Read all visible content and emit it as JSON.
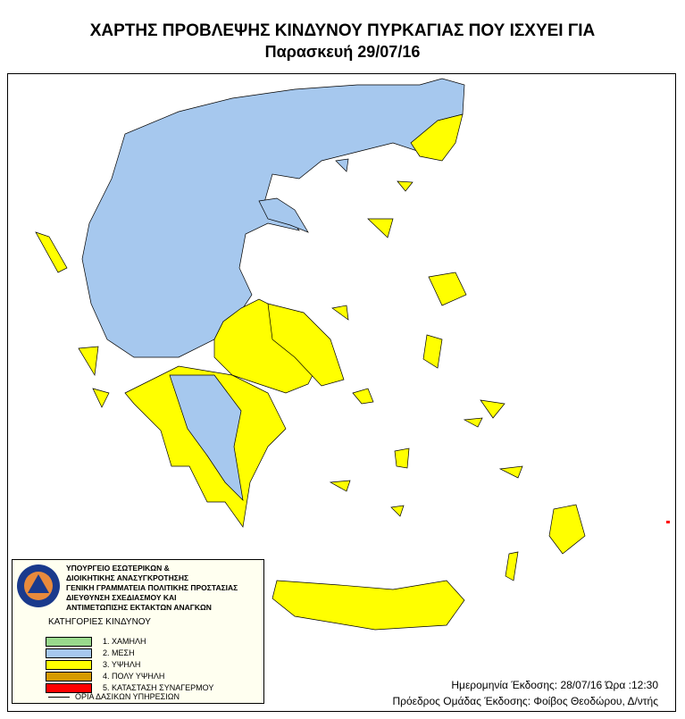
{
  "header": {
    "title": "ΧΑΡΤΗΣ ΠΡΟΒΛΕΨΗΣ ΚΙΝΔΥΝΟΥ ΠΥΡΚΑΓΙΑΣ ΠΟΥ ΙΣΧΥΕΙ ΓΙΑ",
    "subtitle": "Παρασκευή 29/07/16"
  },
  "legend": {
    "organization": [
      "ΥΠΟΥΡΓΕΙΟ ΕΣΩΤΕΡΙΚΩΝ &",
      "ΔΙΟΙΚΗΤΙΚΗΣ ΑΝΑΣΥΓΚΡΟΤΗΣΗΣ",
      "ΓΕΝΙΚΗ ΓΡΑΜΜΑΤΕΙΑ ΠΟΛΙΤΙΚΗΣ ΠΡΟΣΤΑΣΙΑΣ",
      "ΔΙΕΥΘΥΝΣΗ ΣΧΕΔΙΑΣΜΟΥ ΚΑΙ",
      "ΑΝΤΙΜΕΤΩΠΙΣΗΣ ΕΚΤΑΚΤΩΝ ΑΝΑΓΚΩΝ"
    ],
    "logo_text": "ΠΟΛΙΤΙΚΗ ΠΡΟΣΤΑΣΙΑ ΕΛΛΑΔΑ",
    "categories_title": "ΚΑΤΗΓΟΡΙΕΣ ΚΙΝΔΥΝΟΥ",
    "categories": [
      {
        "label": "1. ΧΑΜΗΛΗ",
        "color": "#99d98c"
      },
      {
        "label": "2. ΜΕΣΗ",
        "color": "#a6c8ee"
      },
      {
        "label": "3. ΥΨΗΛΗ",
        "color": "#ffff00"
      },
      {
        "label": "4. ΠΟΛΥ ΥΨΗΛΗ",
        "color": "#d69a00"
      },
      {
        "label": "5. ΚΑΤΑΣΤΑΣΗ ΣΥΝΑΓΕΡΜΟΥ",
        "color": "#ff0000"
      }
    ],
    "boundary_label": "ΟΡΙΑ ΔΑΣΙΚΩΝ ΥΠΗΡΕΣΙΩΝ"
  },
  "footer": {
    "issue": "Ημερομηνία Έκδοσης: 28/07/16  Ώρα :12:30",
    "chair": "Πρόεδρος Ομάδας Έκδοσης: Φοίβος Θεοδώρου, Δ/ντής"
  }
}
